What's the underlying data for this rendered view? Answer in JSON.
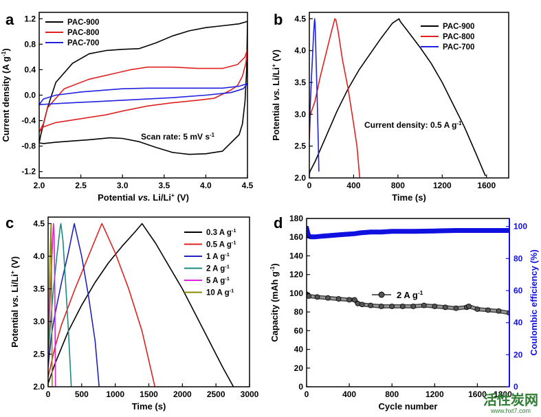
{
  "watermark": {
    "text": "活性炭网",
    "url": "www.hxt7.com"
  },
  "chart_data": [
    {
      "panel": "a",
      "type": "line",
      "xlabel_parts": [
        "Potential ",
        "vs.",
        " Li/Li",
        "+",
        " (V)"
      ],
      "ylabel_parts": [
        "Current density (A g",
        "-1",
        ")"
      ],
      "xlim": [
        2.0,
        4.5
      ],
      "ylim": [
        -1.3,
        1.3
      ],
      "xticks": [
        2.0,
        2.5,
        3.0,
        3.5,
        4.0,
        4.5
      ],
      "xtick_labels": [
        "2.0",
        "2.5",
        "3.0",
        "3.5",
        "4.0",
        "4.5"
      ],
      "yticks": [
        -1.2,
        -0.8,
        -0.4,
        0.0,
        0.4,
        0.8,
        1.2
      ],
      "ytick_labels": [
        "-1.2",
        "-0.8",
        "-0.4",
        "0.0",
        "0.4",
        "0.8",
        "1.2"
      ],
      "annotation_parts": [
        "Scan rate: 5 mV s",
        "-1"
      ],
      "legend_position": "top-left",
      "series": [
        {
          "name": "PAC-900",
          "color": "#000000",
          "x": [
            2.0,
            2.02,
            2.1,
            2.2,
            2.4,
            2.6,
            2.8,
            3.0,
            3.2,
            3.4,
            3.6,
            3.8,
            4.0,
            4.2,
            4.4,
            4.48,
            4.5,
            4.49,
            4.47,
            4.44,
            4.4,
            4.2,
            4.0,
            3.8,
            3.6,
            3.4,
            3.2,
            3.0,
            2.85,
            2.6,
            2.4,
            2.2,
            2.05,
            2.0
          ],
          "y": [
            -0.75,
            -0.62,
            -0.2,
            0.2,
            0.5,
            0.65,
            0.7,
            0.72,
            0.73,
            0.82,
            0.93,
            1.01,
            1.06,
            1.09,
            1.12,
            1.15,
            1.16,
            0.4,
            -0.1,
            -0.45,
            -0.62,
            -0.88,
            -0.92,
            -0.93,
            -0.9,
            -0.82,
            -0.73,
            -0.68,
            -0.67,
            -0.7,
            -0.72,
            -0.74,
            -0.76,
            -0.75
          ]
        },
        {
          "name": "PAC-800",
          "color": "#e02020",
          "x": [
            2.0,
            2.05,
            2.1,
            2.3,
            2.6,
            2.9,
            3.1,
            3.3,
            3.6,
            3.9,
            4.2,
            4.38,
            4.47,
            4.5,
            4.48,
            4.44,
            4.38,
            4.3,
            4.1,
            3.9,
            3.6,
            3.3,
            3.0,
            2.8,
            2.5,
            2.2,
            2.05,
            2.0
          ],
          "y": [
            -0.58,
            -0.45,
            -0.2,
            0.1,
            0.25,
            0.34,
            0.4,
            0.44,
            0.44,
            0.42,
            0.42,
            0.48,
            0.6,
            0.72,
            0.5,
            0.3,
            0.15,
            0.08,
            -0.05,
            -0.08,
            -0.12,
            -0.17,
            -0.25,
            -0.31,
            -0.37,
            -0.43,
            -0.5,
            -0.58
          ]
        },
        {
          "name": "PAC-700",
          "color": "#2020e0",
          "x": [
            2.0,
            2.05,
            2.2,
            2.5,
            2.8,
            3.0,
            3.3,
            3.6,
            3.9,
            4.2,
            4.4,
            4.5,
            4.45,
            4.3,
            4.0,
            3.6,
            3.3,
            3.0,
            2.7,
            2.4,
            2.1,
            2.0
          ],
          "y": [
            -0.15,
            -0.06,
            0.0,
            0.05,
            0.08,
            0.1,
            0.11,
            0.11,
            0.11,
            0.11,
            0.14,
            0.18,
            0.1,
            0.04,
            0.0,
            -0.04,
            -0.06,
            -0.08,
            -0.1,
            -0.12,
            -0.14,
            -0.15
          ]
        }
      ]
    },
    {
      "panel": "b",
      "type": "line",
      "xlabel_parts": [
        "Time (s)"
      ],
      "ylabel_parts": [
        "Potential ",
        "vs.",
        " Li/Li",
        "+",
        " (V)"
      ],
      "xlim": [
        0,
        1800
      ],
      "ylim": [
        2.0,
        4.6
      ],
      "xticks": [
        0,
        400,
        800,
        1200,
        1600
      ],
      "xtick_labels": [
        "0",
        "400",
        "800",
        "1200",
        "1600"
      ],
      "yticks": [
        2.0,
        2.5,
        3.0,
        3.5,
        4.0,
        4.5
      ],
      "ytick_labels": [
        "2.0",
        "2.5",
        "3.0",
        "3.5",
        "4.0",
        "4.5"
      ],
      "annotation_parts": [
        "Current density: 0.5 A g",
        "-1"
      ],
      "legend_position": "top-right",
      "series": [
        {
          "name": "PAC-900",
          "color": "#000000",
          "x": [
            0,
            5,
            50,
            150,
            250,
            350,
            450,
            550,
            650,
            750,
            810,
            820,
            900,
            1000,
            1100,
            1200,
            1300,
            1400,
            1500,
            1590
          ],
          "y": [
            2.05,
            2.1,
            2.25,
            2.65,
            3.05,
            3.4,
            3.7,
            3.95,
            4.2,
            4.43,
            4.5,
            4.46,
            4.28,
            4.05,
            3.8,
            3.5,
            3.15,
            2.8,
            2.4,
            2.03
          ]
        },
        {
          "name": "PAC-800",
          "color": "#e02020",
          "x": [
            0,
            10,
            50,
            100,
            150,
            200,
            230,
            240,
            260,
            300,
            350,
            400,
            430,
            455
          ],
          "y": [
            2.6,
            3.0,
            3.2,
            3.6,
            3.95,
            4.3,
            4.5,
            4.48,
            4.3,
            3.85,
            3.4,
            2.85,
            2.5,
            2.0
          ]
        },
        {
          "name": "PAC-700",
          "color": "#2020e0",
          "x": [
            0,
            10,
            20,
            30,
            40,
            48,
            52,
            60,
            70,
            80,
            86
          ],
          "y": [
            2.8,
            3.2,
            3.6,
            3.95,
            4.3,
            4.5,
            4.42,
            3.9,
            3.3,
            2.6,
            2.1
          ]
        }
      ]
    },
    {
      "panel": "c",
      "type": "line",
      "xlabel_parts": [
        "Time (s)"
      ],
      "ylabel_parts": [
        "Potential ",
        "vs.",
        " Li/Li",
        "+",
        " (V)"
      ],
      "xlim": [
        0,
        3000
      ],
      "ylim": [
        2.0,
        4.6
      ],
      "xticks": [
        0,
        500,
        1000,
        1500,
        2000,
        2500,
        3000
      ],
      "xtick_labels": [
        "0",
        "500",
        "1000",
        "1500",
        "2000",
        "2500",
        "3000"
      ],
      "yticks": [
        2.0,
        2.5,
        3.0,
        3.5,
        4.0,
        4.5
      ],
      "ytick_labels": [
        "2.0",
        "2.5",
        "3.0",
        "3.5",
        "4.0",
        "4.5"
      ],
      "legend_position": "top-right",
      "series": [
        {
          "name": "0.3 A g",
          "sup": "-1",
          "color": "#000000",
          "x": [
            0,
            100,
            300,
            500,
            700,
            900,
            1100,
            1300,
            1400,
            1420,
            1600,
            1800,
            2000,
            2200,
            2400,
            2600,
            2760
          ],
          "y": [
            2.05,
            2.35,
            2.85,
            3.25,
            3.6,
            3.9,
            4.15,
            4.38,
            4.5,
            4.47,
            4.2,
            3.85,
            3.5,
            3.1,
            2.7,
            2.3,
            2.0
          ]
        },
        {
          "name": "0.5 A g",
          "sup": "-1",
          "color": "#e02020",
          "x": [
            0,
            100,
            200,
            400,
            600,
            800,
            820,
            1000,
            1200,
            1400,
            1590
          ],
          "y": [
            2.15,
            2.6,
            2.95,
            3.5,
            4.0,
            4.5,
            4.46,
            4.05,
            3.5,
            2.85,
            2.0
          ]
        },
        {
          "name": "1 A g",
          "sup": "-1",
          "color": "#2020c0",
          "x": [
            0,
            50,
            100,
            200,
            300,
            390,
            400,
            500,
            600,
            700,
            760
          ],
          "y": [
            2.3,
            2.8,
            3.1,
            3.6,
            4.05,
            4.5,
            4.45,
            4.0,
            3.4,
            2.7,
            2.0
          ]
        },
        {
          "name": "2 A g",
          "sup": "-1",
          "color": "#1a8a80",
          "x": [
            0,
            30,
            80,
            130,
            180,
            190,
            220,
            260,
            300,
            345
          ],
          "y": [
            2.4,
            2.9,
            3.5,
            4.0,
            4.45,
            4.5,
            4.25,
            3.6,
            2.9,
            2.0
          ]
        },
        {
          "name": "5 A g",
          "sup": "-1",
          "color": "#e020e0",
          "x": [
            0,
            20,
            40,
            70,
            80,
            90,
            100,
            110
          ],
          "y": [
            2.45,
            3.1,
            3.6,
            4.3,
            4.5,
            4.3,
            3.4,
            2.0
          ]
        },
        {
          "name": "10 A g",
          "sup": "-1",
          "color": "#8a8a00",
          "x": [
            0,
            15,
            30,
            40,
            45,
            52,
            60
          ],
          "y": [
            2.5,
            3.3,
            4.0,
            4.4,
            4.5,
            3.6,
            2.0
          ]
        }
      ]
    },
    {
      "panel": "d",
      "type": "scatter",
      "xlabel_parts": [
        "Cycle number"
      ],
      "ylabel_parts": [
        "Capacity (mAh g",
        "-1",
        ")"
      ],
      "y2label_parts": [
        "Coulombic efficiency (%)"
      ],
      "xlim": [
        0,
        1900
      ],
      "ylim": [
        0,
        180
      ],
      "y2lim": [
        0,
        105
      ],
      "xticks": [
        0,
        400,
        800,
        1200,
        1600
      ],
      "xtick_labels": [
        "0",
        "400",
        "800",
        "1200",
        "1600"
      ],
      "xtick_label_last": "1800",
      "yticks": [
        0,
        20,
        40,
        60,
        80,
        100,
        120,
        140,
        160,
        180
      ],
      "ytick_labels": [
        "0",
        "20",
        "40",
        "60",
        "80",
        "100",
        "120",
        "140",
        "160",
        "180"
      ],
      "y2ticks": [
        0,
        20,
        40,
        60,
        80,
        100
      ],
      "y2tick_labels": [
        "0",
        "20",
        "40",
        "60",
        "80",
        "100"
      ],
      "legend_parts": [
        "2 A g",
        "-1"
      ],
      "legend_position": "center",
      "series": [
        {
          "name": "Capacity",
          "axis": "left",
          "color": "#000000",
          "x": [
            0,
            20,
            100,
            200,
            300,
            400,
            450,
            480,
            520,
            600,
            700,
            800,
            900,
            1000,
            1100,
            1200,
            1300,
            1400,
            1500,
            1520,
            1600,
            1700,
            1800,
            1900
          ],
          "y": [
            99,
            97,
            96,
            95,
            94,
            93,
            93,
            89,
            88,
            87,
            86,
            86,
            86,
            86,
            87,
            86,
            85,
            84,
            85,
            86,
            83,
            82,
            81,
            79
          ]
        },
        {
          "name": "Coulombic efficiency",
          "axis": "right",
          "color": "#1010e0",
          "x": [
            0,
            10,
            20,
            40,
            80,
            150,
            250,
            350,
            450,
            500,
            600,
            700,
            800,
            900,
            1000,
            1200,
            1400,
            1600,
            1800,
            1900
          ],
          "y": [
            99,
            96,
            94,
            93.5,
            93.5,
            94,
            94.5,
            95,
            95.5,
            96,
            96.5,
            96.5,
            97,
            97,
            97,
            97.2,
            97.5,
            97.5,
            97.5,
            97.5
          ]
        }
      ]
    }
  ]
}
